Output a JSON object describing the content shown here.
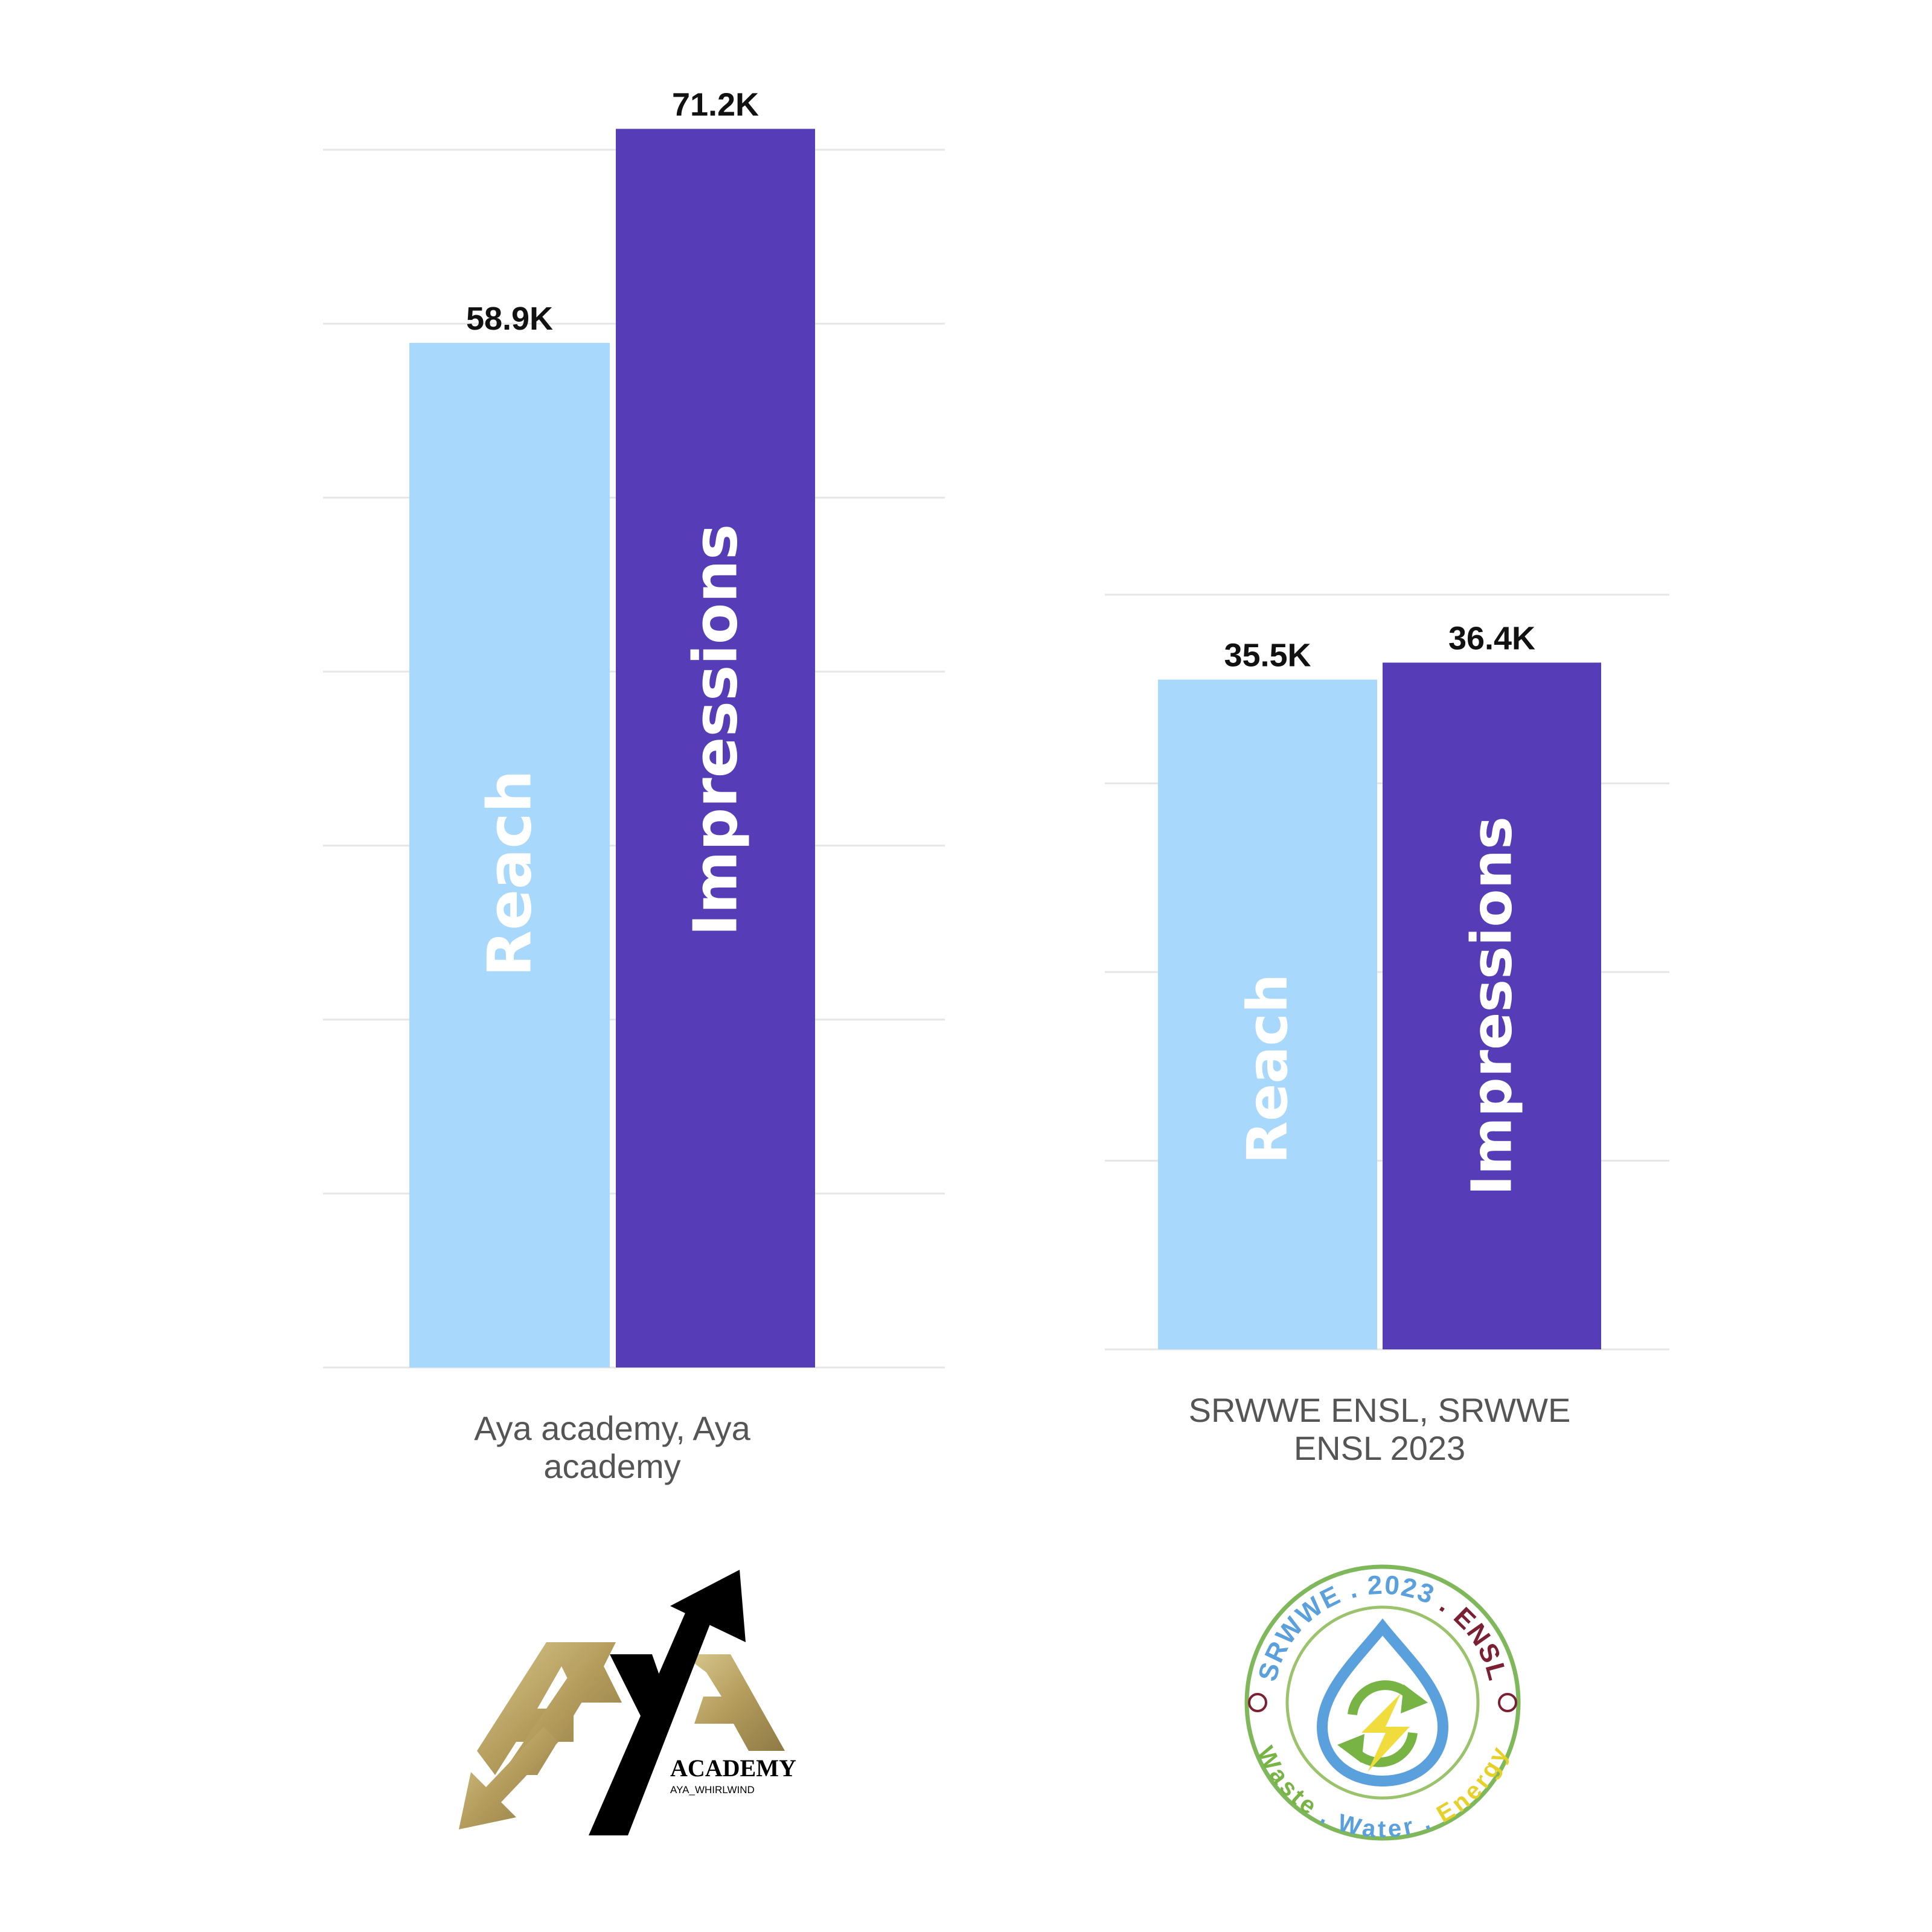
{
  "chart_data": [
    {
      "type": "bar",
      "categories": [
        "Aya academy, Aya academy"
      ],
      "category_lines": [
        "Aya academy, Aya",
        "academy"
      ],
      "series": [
        {
          "name": "Reach",
          "values": [
            58.9
          ],
          "value_labels": [
            "58.9K"
          ]
        },
        {
          "name": "Impressions",
          "values": [
            71.2
          ],
          "value_labels": [
            "71.2K"
          ]
        }
      ],
      "unit": "K",
      "ylim": [
        0,
        70
      ],
      "grid": true,
      "legend": "inside-bars"
    },
    {
      "type": "bar",
      "categories": [
        "SRWWE ENSL, SRWWE ENSL 2023"
      ],
      "category_lines": [
        "SRWWE ENSL, SRWWE",
        "ENSL 2023"
      ],
      "series": [
        {
          "name": "Reach",
          "values": [
            35.5
          ],
          "value_labels": [
            "35.5K"
          ]
        },
        {
          "name": "Impressions",
          "values": [
            36.4
          ],
          "value_labels": [
            "36.4K"
          ]
        }
      ],
      "unit": "K",
      "ylim": [
        0,
        40
      ],
      "grid": true,
      "legend": "inside-bars"
    }
  ],
  "colors": {
    "reach": "#a8d8fb",
    "impressions": "#573cb8",
    "grid": "#e6e6e6",
    "value_label": "#111111",
    "category_label": "#555555",
    "bar_text": "#ffffff"
  },
  "logos": {
    "aya": {
      "icon": "aya-academy-logo",
      "wordmark": "ACADEMY",
      "handle": "AYA_WHIRLWIND",
      "gold": "#b9a468",
      "black": "#000000"
    },
    "srwwe": {
      "icon": "srwwe-ensl-seal",
      "top_text": [
        "SRWWE",
        ".",
        "2023",
        ".",
        "ENSL"
      ],
      "bottom_text": [
        "Waste",
        ".",
        "Water",
        ".",
        "Energy"
      ],
      "blue": "#5aa0dc",
      "green": "#78b443",
      "yellow": "#f0dc3c",
      "maroon": "#7a2032"
    }
  }
}
